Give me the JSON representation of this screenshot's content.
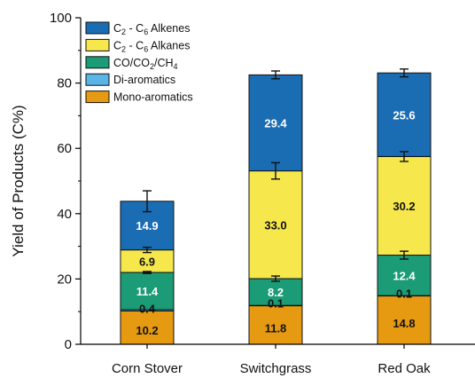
{
  "chart_data": {
    "type": "bar",
    "stacked": true,
    "categories": [
      "Corn Stover",
      "Switchgrass",
      "Red Oak"
    ],
    "ylabel": "Yield of Products (C%)",
    "xlabel": "",
    "ylim": [
      0,
      100
    ],
    "yticks": [
      0,
      20,
      40,
      60,
      80,
      100
    ],
    "legend_position": "top-left",
    "series": [
      {
        "key": "mono",
        "name": "Mono-aromatics",
        "color": "#e59a12",
        "values": [
          10.2,
          11.8,
          14.8
        ],
        "labels": [
          "10.2",
          "11.8",
          "14.8"
        ],
        "errors": [
          null,
          null,
          null
        ]
      },
      {
        "key": "di",
        "name": "Di-aromatics",
        "color": "#5ab4e5",
        "values": [
          0.4,
          0.1,
          0.1
        ],
        "labels": [
          "0.4",
          "0.1",
          "0.1"
        ],
        "errors": [
          null,
          null,
          null
        ]
      },
      {
        "key": "gas",
        "name": "CO/CO2/CH4",
        "color": "#1b9b76",
        "values": [
          11.4,
          8.2,
          12.4
        ],
        "labels": [
          "11.4",
          "8.2",
          "12.4"
        ],
        "errors": [
          0.3,
          0.8,
          1.2
        ]
      },
      {
        "key": "alkanes",
        "name": "C2 - C6 Alkanes",
        "color": "#f6e84c",
        "values": [
          6.9,
          33.0,
          30.2
        ],
        "labels": [
          "6.9",
          "33.0",
          "30.2"
        ],
        "errors": [
          0.8,
          2.5,
          1.5
        ]
      },
      {
        "key": "alkenes",
        "name": "C2 - C6 Alkenes",
        "color": "#1a6db3",
        "values": [
          14.9,
          29.4,
          25.6
        ],
        "labels": [
          "14.9",
          "29.4",
          "25.6"
        ],
        "errors": [
          3.2,
          1.2,
          1.2
        ]
      }
    ],
    "legend_order": [
      "alkenes",
      "alkanes",
      "gas",
      "di",
      "mono"
    ],
    "legend_text": {
      "alkenes": {
        "pre": "C",
        "s1": "2",
        "mid": " - C",
        "s2": "6",
        "post": " Alkenes"
      },
      "alkanes": {
        "pre": "C",
        "s1": "2",
        "mid": " - C",
        "s2": "6",
        "post": " Alkanes"
      },
      "gas": {
        "pre": "CO/CO",
        "s1": "2",
        "mid": "/CH",
        "s2": "4",
        "post": ""
      },
      "di": {
        "pre": "Di-aromatics",
        "s1": "",
        "mid": "",
        "s2": "",
        "post": ""
      },
      "mono": {
        "pre": "Mono-aromatics",
        "s1": "",
        "mid": "",
        "s2": "",
        "post": ""
      }
    }
  }
}
